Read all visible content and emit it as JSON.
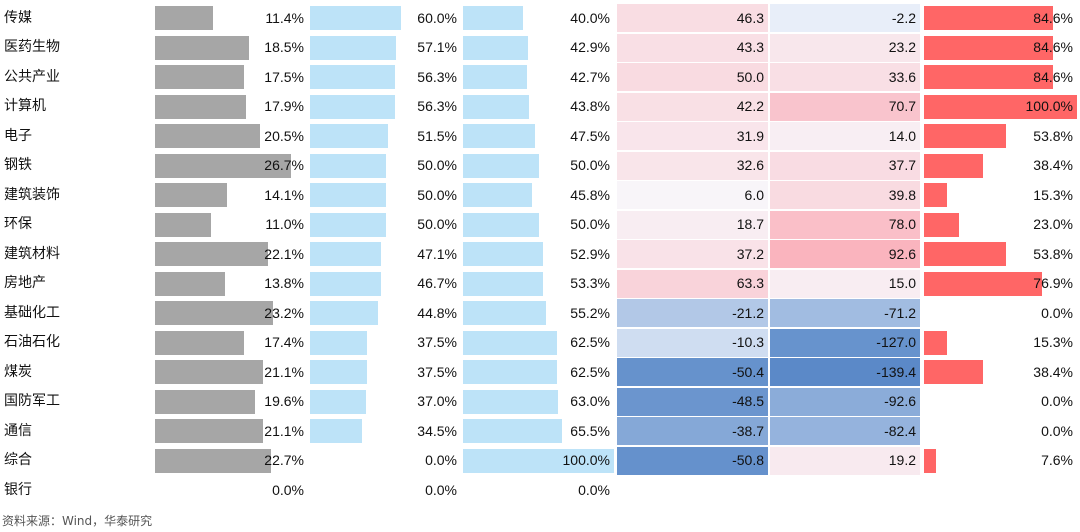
{
  "chart_data": {
    "type": "table",
    "columns": [
      {
        "kind": "bar",
        "color": "#a6a6a6",
        "max": 30
      },
      {
        "kind": "bar",
        "color": "#bde3f8",
        "max": 100
      },
      {
        "kind": "bar",
        "color": "#bde3f8",
        "max": 100
      },
      {
        "kind": "heat",
        "scale": "diverging"
      },
      {
        "kind": "heat",
        "scale": "diverging"
      },
      {
        "kind": "bar",
        "color": "#ff6666",
        "max": 100
      }
    ],
    "rows": [
      {
        "name": "传媒",
        "values": [
          11.4,
          60.0,
          40.0,
          46.3,
          -2.2,
          84.6
        ],
        "labels": [
          "11.4%",
          "60.0%",
          "40.0%",
          "46.3",
          "-2.2",
          "84.6%"
        ]
      },
      {
        "name": "医药生物",
        "values": [
          18.5,
          57.1,
          42.9,
          43.3,
          23.2,
          84.6
        ],
        "labels": [
          "18.5%",
          "57.1%",
          "42.9%",
          "43.3",
          "23.2",
          "84.6%"
        ]
      },
      {
        "name": "公共产业",
        "values": [
          17.5,
          56.3,
          42.7,
          50.0,
          33.6,
          84.6
        ],
        "labels": [
          "17.5%",
          "56.3%",
          "42.7%",
          "50.0",
          "33.6",
          "84.6%"
        ]
      },
      {
        "name": "计算机",
        "values": [
          17.9,
          56.3,
          43.8,
          42.2,
          70.7,
          100.0
        ],
        "labels": [
          "17.9%",
          "56.3%",
          "43.8%",
          "42.2",
          "70.7",
          "100.0%"
        ]
      },
      {
        "name": "电子",
        "values": [
          20.5,
          51.5,
          47.5,
          31.9,
          14.0,
          53.8
        ],
        "labels": [
          "20.5%",
          "51.5%",
          "47.5%",
          "31.9",
          "14.0",
          "53.8%"
        ]
      },
      {
        "name": "钢铁",
        "values": [
          26.7,
          50.0,
          50.0,
          32.6,
          37.7,
          38.4
        ],
        "labels": [
          "26.7%",
          "50.0%",
          "50.0%",
          "32.6",
          "37.7",
          "38.4%"
        ]
      },
      {
        "name": "建筑装饰",
        "values": [
          14.1,
          50.0,
          45.8,
          6.0,
          39.8,
          15.3
        ],
        "labels": [
          "14.1%",
          "50.0%",
          "45.8%",
          "6.0",
          "39.8",
          "15.3%"
        ]
      },
      {
        "name": "环保",
        "values": [
          11.0,
          50.0,
          50.0,
          18.7,
          78.0,
          23.0
        ],
        "labels": [
          "11.0%",
          "50.0%",
          "50.0%",
          "18.7",
          "78.0",
          "23.0%"
        ]
      },
      {
        "name": "建筑材料",
        "values": [
          22.1,
          47.1,
          52.9,
          37.2,
          92.6,
          53.8
        ],
        "labels": [
          "22.1%",
          "47.1%",
          "52.9%",
          "37.2",
          "92.6",
          "53.8%"
        ]
      },
      {
        "name": "房地产",
        "values": [
          13.8,
          46.7,
          53.3,
          63.3,
          15.0,
          76.9
        ],
        "labels": [
          "13.8%",
          "46.7%",
          "53.3%",
          "63.3",
          "15.0",
          "76.9%"
        ]
      },
      {
        "name": "基础化工",
        "values": [
          23.2,
          44.8,
          55.2,
          -21.2,
          -71.2,
          0.0
        ],
        "labels": [
          "23.2%",
          "44.8%",
          "55.2%",
          "-21.2",
          "-71.2",
          "0.0%"
        ]
      },
      {
        "name": "石油石化",
        "values": [
          17.4,
          37.5,
          62.5,
          -10.3,
          -127.0,
          15.3
        ],
        "labels": [
          "17.4%",
          "37.5%",
          "62.5%",
          "-10.3",
          "-127.0",
          "15.3%"
        ]
      },
      {
        "name": "煤炭",
        "values": [
          21.1,
          37.5,
          62.5,
          -50.4,
          -139.4,
          38.4
        ],
        "labels": [
          "21.1%",
          "37.5%",
          "62.5%",
          "-50.4",
          "-139.4",
          "38.4%"
        ]
      },
      {
        "name": "国防军工",
        "values": [
          19.6,
          37.0,
          63.0,
          -48.5,
          -92.6,
          0.0
        ],
        "labels": [
          "19.6%",
          "37.0%",
          "63.0%",
          "-48.5",
          "-92.6",
          "0.0%"
        ]
      },
      {
        "name": "通信",
        "values": [
          21.1,
          34.5,
          65.5,
          -38.7,
          -82.4,
          0.0
        ],
        "labels": [
          "21.1%",
          "34.5%",
          "65.5%",
          "-38.7",
          "-82.4",
          "0.0%"
        ]
      },
      {
        "name": "综合",
        "values": [
          22.7,
          0.0,
          100.0,
          -50.8,
          19.2,
          7.6
        ],
        "labels": [
          "22.7%",
          "0.0%",
          "100.0%",
          "-50.8",
          "19.2",
          "7.6%"
        ]
      },
      {
        "name": "银行",
        "values": [
          0.0,
          0.0,
          0.0,
          null,
          null,
          null
        ],
        "labels": [
          "0.0%",
          "0.0%",
          "0.0%",
          "",
          "",
          ""
        ]
      }
    ]
  },
  "source_note": "资料来源：Wind，华泰研究"
}
